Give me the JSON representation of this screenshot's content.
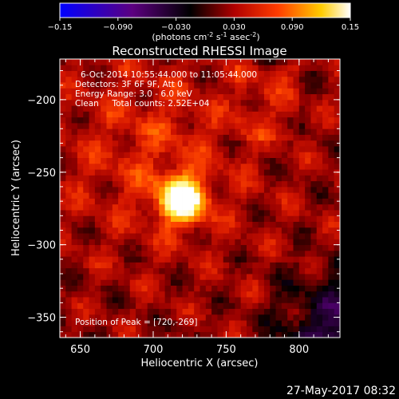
{
  "colorbar": {
    "ticks": [
      "-0.15",
      "-0.090",
      "-0.030",
      "0.030",
      "0.090",
      "0.15"
    ],
    "range": [
      -0.15,
      0.15
    ],
    "unit_pre": "(photons cm",
    "unit_sup1": "-2",
    "unit_mid": " s",
    "unit_sup2": "-1",
    "unit_mid2": " asec",
    "unit_sup3": "-2",
    "unit_post": ")"
  },
  "title": "Reconstructed RHESSI Image",
  "info": {
    "line1": "6-Oct-2014 10:55:44.000 to 11:05:44.000",
    "line2": "Detectors: 3F 6F 9F, Att 0",
    "line3": "Energy Range: 3.0 - 6.0 keV",
    "line4": "Clean     Total counts: 2.52E+04"
  },
  "peak_label": "Position of Peak = [720,-269]",
  "footer_date": "27-May-2017 08:32",
  "colors": {
    "cmap": [
      "#0000ff",
      "#5c0080",
      "#000000",
      "#cc0000",
      "#ff6600",
      "#ffff66",
      "#ffffff"
    ]
  },
  "chart_data": {
    "type": "heatmap",
    "title": "Reconstructed RHESSI Image",
    "xlabel": "Heliocentric X (arcsec)",
    "ylabel": "Heliocentric Y (arcsec)",
    "xlim": [
      636,
      828
    ],
    "ylim": [
      -364,
      -172
    ],
    "x_ticks": [
      650,
      700,
      750,
      800
    ],
    "x_tick_labels": [
      "650",
      "700",
      "750",
      "800"
    ],
    "y_ticks": [
      -200,
      -250,
      -300,
      -350
    ],
    "y_tick_labels": [
      "−200",
      "−250",
      "−300",
      "−350"
    ],
    "peak": {
      "x": 720,
      "y": -269
    },
    "value_range": [
      -0.15,
      0.15
    ]
  }
}
